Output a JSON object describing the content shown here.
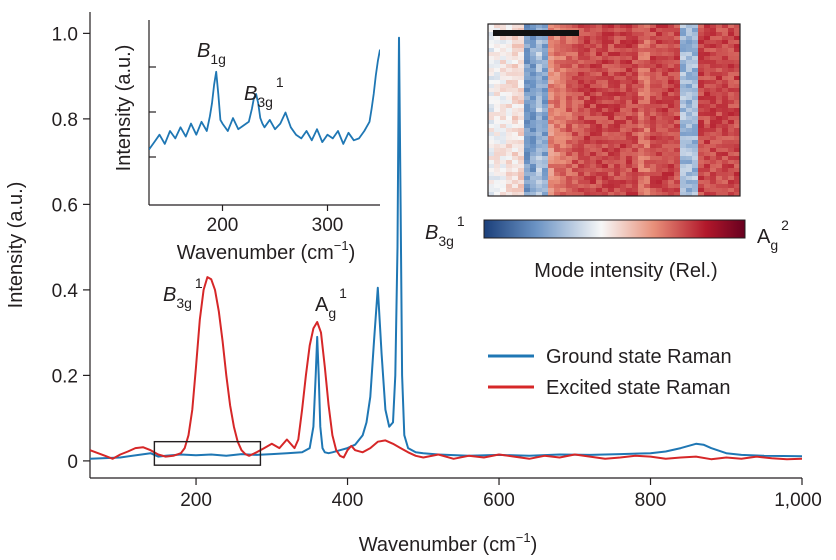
{
  "chart_data": [
    {
      "id": "main",
      "type": "line",
      "xlabel": "Wavenumber (cm",
      "xlabel_sup": "−1",
      "xlabel_close": ")",
      "ylabel": "Intensity (a.u.)",
      "xlim": [
        60,
        1000
      ],
      "ylim": [
        -0.04,
        1.05
      ],
      "xticks": [
        200,
        400,
        600,
        800,
        1000
      ],
      "xtick_labels": [
        "200",
        "400",
        "600",
        "800",
        "1,000"
      ],
      "yticks": [
        0,
        0.2,
        0.4,
        0.6,
        0.8,
        1.0
      ],
      "ytick_labels": [
        "0",
        "0.2",
        "0.4",
        "0.6",
        "0.8",
        "1.0"
      ],
      "series": [
        {
          "name": "Ground state Raman",
          "color": "#1f77b4",
          "x": [
            60,
            100,
            140,
            150,
            160,
            180,
            200,
            220,
            240,
            260,
            280,
            300,
            320,
            340,
            350,
            355,
            358,
            360,
            362,
            364,
            367,
            370,
            375,
            380,
            390,
            400,
            410,
            420,
            425,
            430,
            435,
            440,
            445,
            450,
            455,
            460,
            463,
            466,
            468,
            470,
            472,
            475,
            480,
            490,
            500,
            520,
            560,
            600,
            640,
            680,
            720,
            760,
            800,
            820,
            840,
            860,
            870,
            880,
            900,
            920,
            950,
            1000
          ],
          "y": [
            0.005,
            0.008,
            0.018,
            0.01,
            0.012,
            0.015,
            0.013,
            0.015,
            0.012,
            0.016,
            0.014,
            0.016,
            0.018,
            0.02,
            0.03,
            0.08,
            0.2,
            0.29,
            0.2,
            0.08,
            0.03,
            0.02,
            0.018,
            0.02,
            0.025,
            0.03,
            0.038,
            0.06,
            0.09,
            0.15,
            0.28,
            0.405,
            0.25,
            0.12,
            0.08,
            0.09,
            0.2,
            0.5,
            0.99,
            0.6,
            0.2,
            0.06,
            0.03,
            0.02,
            0.018,
            0.015,
            0.012,
            0.014,
            0.012,
            0.015,
            0.014,
            0.016,
            0.018,
            0.022,
            0.03,
            0.04,
            0.038,
            0.03,
            0.018,
            0.014,
            0.012,
            0.011
          ]
        },
        {
          "name": "Excited state Raman",
          "color": "#d62728",
          "x": [
            60,
            80,
            90,
            100,
            110,
            120,
            130,
            140,
            150,
            160,
            170,
            180,
            185,
            190,
            195,
            200,
            205,
            210,
            215,
            220,
            225,
            230,
            235,
            240,
            245,
            250,
            255,
            260,
            265,
            270,
            280,
            290,
            300,
            310,
            320,
            330,
            335,
            340,
            345,
            350,
            355,
            360,
            365,
            370,
            375,
            380,
            385,
            390,
            395,
            400,
            405,
            410,
            420,
            430,
            440,
            450,
            460,
            470,
            480,
            490,
            500,
            520,
            540,
            560,
            580,
            600,
            620,
            640,
            660,
            680,
            700,
            720,
            740,
            760,
            780,
            800,
            820,
            840,
            860,
            880,
            900,
            920,
            940,
            960,
            980,
            1000
          ],
          "y": [
            0.025,
            0.012,
            0.005,
            0.015,
            0.022,
            0.03,
            0.032,
            0.025,
            0.015,
            0.01,
            0.012,
            0.018,
            0.03,
            0.06,
            0.12,
            0.22,
            0.33,
            0.4,
            0.43,
            0.425,
            0.4,
            0.35,
            0.28,
            0.2,
            0.13,
            0.08,
            0.045,
            0.025,
            0.016,
            0.012,
            0.02,
            0.03,
            0.04,
            0.03,
            0.05,
            0.03,
            0.05,
            0.12,
            0.2,
            0.27,
            0.31,
            0.325,
            0.3,
            0.22,
            0.13,
            0.06,
            0.025,
            0.012,
            0.008,
            0.025,
            0.035,
            0.025,
            0.02,
            0.03,
            0.045,
            0.048,
            0.04,
            0.03,
            0.02,
            0.012,
            0.008,
            0.015,
            0.005,
            0.012,
            0.008,
            0.015,
            0.01,
            0.005,
            0.012,
            0.008,
            0.015,
            0.01,
            0.005,
            0.008,
            0.012,
            0.01,
            0.005,
            0.008,
            0.01,
            0.004,
            0.008,
            0.005,
            0.01,
            0.006,
            0.004,
            0.005
          ]
        }
      ],
      "annotations": {
        "b3g_italic": "B",
        "b3g_sub": "3g",
        "b3g_sup": "1",
        "ag_main": "A",
        "ag_sub": "g",
        "ag_sup": "1"
      },
      "highlight_box_data": {
        "x0": 145,
        "x1": 285,
        "y0": -0.01,
        "y1": 0.045
      },
      "legend": {
        "position": "center-right",
        "entries": [
          "Ground state Raman",
          "Excited state Raman"
        ]
      }
    },
    {
      "id": "inset",
      "type": "line",
      "xlabel": "Wavenumber (cm",
      "xlabel_sup": "−1",
      "xlabel_close": ")",
      "ylabel": "Intensity (a.u.)",
      "xlim": [
        130,
        350
      ],
      "ylim": [
        0,
        1
      ],
      "xticks": [
        200,
        300
      ],
      "xtick_labels": [
        "200",
        "300"
      ],
      "color": "#1f77b4",
      "series_x": [
        130,
        135,
        140,
        145,
        150,
        155,
        160,
        165,
        170,
        175,
        180,
        185,
        188,
        190,
        192,
        194,
        196,
        198,
        200,
        205,
        210,
        215,
        220,
        225,
        228,
        230,
        232,
        234,
        236,
        238,
        240,
        245,
        250,
        255,
        260,
        265,
        270,
        275,
        280,
        285,
        290,
        295,
        300,
        305,
        310,
        315,
        320,
        325,
        330,
        335,
        340,
        342,
        344,
        346,
        348,
        350
      ],
      "series_y": [
        0.3,
        0.34,
        0.38,
        0.33,
        0.4,
        0.36,
        0.42,
        0.37,
        0.44,
        0.38,
        0.45,
        0.4,
        0.48,
        0.55,
        0.65,
        0.72,
        0.6,
        0.46,
        0.44,
        0.4,
        0.47,
        0.41,
        0.43,
        0.45,
        0.52,
        0.58,
        0.6,
        0.55,
        0.47,
        0.44,
        0.42,
        0.46,
        0.41,
        0.44,
        0.5,
        0.42,
        0.38,
        0.36,
        0.4,
        0.35,
        0.41,
        0.34,
        0.38,
        0.36,
        0.4,
        0.33,
        0.39,
        0.35,
        0.36,
        0.4,
        0.45,
        0.52,
        0.6,
        0.7,
        0.78,
        0.84
      ],
      "annotations": {
        "b1g_italic": "B",
        "b1g_sub": "1g",
        "b3g_italic": "B",
        "b3g_sub": "3g",
        "b3g_sup": "1"
      }
    },
    {
      "id": "heatmap",
      "type": "heatmap",
      "colormap": [
        "#1b3f7a",
        "#6b93c4",
        "#f7f7f7",
        "#e8907a",
        "#b2182b",
        "#67001f"
      ],
      "colorbar_left_label": {
        "italic": "B",
        "sub": "3g",
        "sup": "1"
      },
      "colorbar_right_label": {
        "main": "A",
        "sub": "g",
        "sup": "2"
      },
      "colorbar_title": "Mode intensity (Rel.)"
    }
  ]
}
